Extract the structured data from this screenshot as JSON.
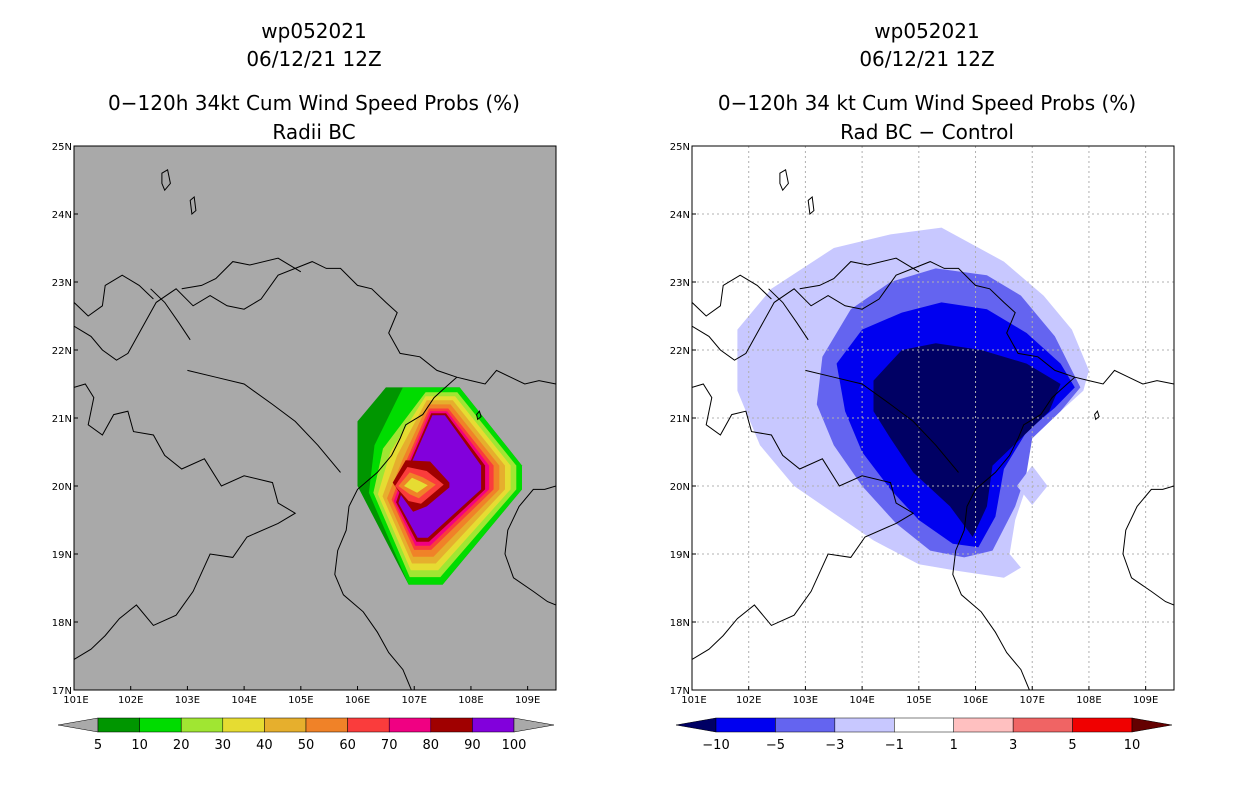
{
  "chart_data": [
    {
      "type": "contour-map",
      "title_lines": [
        "wp052021",
        "06/12/21 12Z",
        "0−120h 34kt Cum Wind Speed Probs (%)",
        "Radii BC"
      ],
      "xlabel": "",
      "ylabel": "",
      "xlim": [
        101,
        109.5
      ],
      "ylim": [
        17,
        25
      ],
      "x_tick_labels": [
        "101E",
        "102E",
        "103E",
        "104E",
        "105E",
        "106E",
        "107E",
        "108E",
        "109E"
      ],
      "y_tick_labels": [
        "17N",
        "18N",
        "19N",
        "20N",
        "21N",
        "22N",
        "23N",
        "24N",
        "25N"
      ],
      "grid": false,
      "background_color": "#a9a9a9",
      "storm_center": [
        107.0,
        20.0
      ],
      "levels": [
        {
          "min": 5,
          "color": "#009600",
          "polygon": [
            [
              106.5,
              21.45
            ],
            [
              107.8,
              21.45
            ],
            [
              108.9,
              20.3
            ],
            [
              108.9,
              19.95
            ],
            [
              107.5,
              18.55
            ],
            [
              106.9,
              18.55
            ],
            [
              106.0,
              20.0
            ],
            [
              106.0,
              20.95
            ]
          ]
        },
        {
          "min": 10,
          "color": "#00dc00",
          "polygon": [
            [
              106.8,
              21.45
            ],
            [
              107.8,
              21.45
            ],
            [
              108.9,
              20.3
            ],
            [
              108.9,
              19.95
            ],
            [
              107.5,
              18.55
            ],
            [
              106.9,
              18.55
            ],
            [
              106.2,
              19.9
            ],
            [
              106.3,
              20.6
            ]
          ]
        },
        {
          "min": 20,
          "color": "#a0e632",
          "polygon": [
            [
              107.2,
              21.38
            ],
            [
              107.76,
              21.38
            ],
            [
              108.8,
              20.3
            ],
            [
              108.8,
              19.95
            ],
            [
              107.46,
              18.66
            ],
            [
              106.92,
              18.66
            ],
            [
              106.28,
              19.9
            ],
            [
              106.45,
              20.55
            ]
          ]
        },
        {
          "min": 30,
          "color": "#e6dc32",
          "polygon": [
            [
              107.2,
              21.32
            ],
            [
              107.72,
              21.32
            ],
            [
              108.7,
              20.3
            ],
            [
              108.7,
              19.95
            ],
            [
              107.42,
              18.76
            ],
            [
              106.94,
              18.76
            ],
            [
              106.36,
              19.88
            ],
            [
              106.58,
              20.5
            ]
          ]
        },
        {
          "min": 40,
          "color": "#e6af2d",
          "polygon": [
            [
              107.22,
              21.26
            ],
            [
              107.68,
              21.26
            ],
            [
              108.6,
              20.3
            ],
            [
              108.6,
              19.95
            ],
            [
              107.38,
              18.86
            ],
            [
              106.96,
              18.86
            ],
            [
              106.44,
              19.85
            ],
            [
              106.7,
              20.45
            ]
          ]
        },
        {
          "min": 50,
          "color": "#f08228",
          "polygon": [
            [
              107.24,
              21.2
            ],
            [
              107.64,
              21.2
            ],
            [
              108.5,
              20.3
            ],
            [
              108.5,
              19.95
            ],
            [
              107.34,
              18.96
            ],
            [
              106.98,
              18.96
            ],
            [
              106.52,
              19.82
            ],
            [
              106.8,
              20.4
            ]
          ]
        },
        {
          "min": 60,
          "color": "#fa3c3c",
          "polygon": [
            [
              107.26,
              21.14
            ],
            [
              107.6,
              21.14
            ],
            [
              108.4,
              20.3
            ],
            [
              108.4,
              19.95
            ],
            [
              107.3,
              19.06
            ],
            [
              107.0,
              19.06
            ],
            [
              106.6,
              19.8
            ],
            [
              106.85,
              20.35
            ]
          ]
        },
        {
          "min": 70,
          "color": "#f00082",
          "polygon": [
            [
              107.28,
              21.1
            ],
            [
              107.58,
              21.1
            ],
            [
              108.32,
              20.3
            ],
            [
              108.32,
              19.95
            ],
            [
              107.28,
              19.12
            ],
            [
              107.02,
              19.12
            ],
            [
              106.64,
              19.78
            ],
            [
              106.88,
              20.32
            ]
          ]
        },
        {
          "min": 80,
          "color": "#a00000",
          "polygon": [
            [
              107.3,
              21.07
            ],
            [
              107.56,
              21.07
            ],
            [
              108.25,
              20.3
            ],
            [
              108.25,
              19.95
            ],
            [
              107.26,
              19.18
            ],
            [
              107.04,
              19.18
            ],
            [
              106.68,
              19.76
            ],
            [
              106.9,
              20.3
            ]
          ]
        },
        {
          "min": 90,
          "color": "#8200dc",
          "polygon": [
            [
              107.32,
              21.04
            ],
            [
              107.54,
              21.04
            ],
            [
              108.18,
              20.3
            ],
            [
              108.18,
              19.95
            ],
            [
              107.24,
              19.24
            ],
            [
              107.06,
              19.24
            ],
            [
              106.72,
              19.75
            ],
            [
              106.92,
              20.28
            ]
          ]
        },
        {
          "min": 80,
          "color": "#a00000",
          "polygon": [
            [
              106.85,
              20.38
            ],
            [
              107.28,
              20.36
            ],
            [
              107.62,
              20.05
            ],
            [
              107.62,
              19.98
            ],
            [
              107.22,
              19.7
            ],
            [
              106.98,
              19.62
            ],
            [
              106.78,
              19.85
            ],
            [
              106.62,
              20.05
            ]
          ]
        },
        {
          "min": 70,
          "color": "#fa3c3c",
          "polygon": [
            [
              106.88,
              20.28
            ],
            [
              107.22,
              20.22
            ],
            [
              107.52,
              20.02
            ],
            [
              107.12,
              19.74
            ],
            [
              106.9,
              19.78
            ],
            [
              106.66,
              20.0
            ]
          ]
        },
        {
          "min": 50,
          "color": "#f08228",
          "polygon": [
            [
              106.92,
              20.2
            ],
            [
              107.15,
              20.13
            ],
            [
              107.38,
              20.02
            ],
            [
              107.08,
              19.82
            ],
            [
              106.92,
              19.88
            ],
            [
              106.72,
              20.0
            ]
          ]
        },
        {
          "min": 30,
          "color": "#e6dc32",
          "polygon": [
            [
              106.96,
              20.12
            ],
            [
              107.1,
              20.07
            ],
            [
              107.24,
              20.01
            ],
            [
              107.05,
              19.9
            ],
            [
              106.96,
              19.94
            ],
            [
              106.82,
              20.0
            ]
          ]
        }
      ],
      "colorbar": {
        "type": "triangle-ends",
        "tick_labels": [
          "5",
          "10",
          "20",
          "30",
          "40",
          "50",
          "60",
          "70",
          "80",
          "90",
          "100"
        ],
        "colors": [
          "#009600",
          "#00dc00",
          "#a0e632",
          "#e6dc32",
          "#e6af2d",
          "#f08228",
          "#fa3c3c",
          "#f00082",
          "#a00000",
          "#8200dc"
        ],
        "end_color": "#a9a9a9"
      }
    },
    {
      "type": "contour-map",
      "title_lines": [
        "wp052021",
        "06/12/21 12Z",
        "0−120h 34 kt Cum Wind Speed Probs (%)",
        "Rad BC − Control"
      ],
      "xlabel": "",
      "ylabel": "",
      "xlim": [
        101,
        109.5
      ],
      "ylim": [
        17,
        25
      ],
      "x_tick_labels": [
        "101E",
        "102E",
        "103E",
        "104E",
        "105E",
        "106E",
        "107E",
        "108E",
        "109E"
      ],
      "y_tick_labels": [
        "17N",
        "18N",
        "19N",
        "20N",
        "21N",
        "22N",
        "23N",
        "24N",
        "25N"
      ],
      "grid": true,
      "background_color": "#ffffff",
      "levels": [
        {
          "max": -1,
          "color": "#c8c8ff",
          "polygon": [
            [
              101.8,
              22.3
            ],
            [
              102.4,
              22.9
            ],
            [
              103.5,
              23.5
            ],
            [
              104.5,
              23.7
            ],
            [
              105.4,
              23.8
            ],
            [
              106.5,
              23.3
            ],
            [
              107.2,
              22.8
            ],
            [
              107.7,
              22.3
            ],
            [
              108.0,
              21.7
            ],
            [
              107.9,
              21.4
            ],
            [
              107.5,
              21.1
            ],
            [
              107.2,
              21.0
            ],
            [
              106.9,
              20.6
            ],
            [
              106.9,
              20.0
            ],
            [
              106.7,
              19.5
            ],
            [
              106.6,
              19.0
            ],
            [
              106.8,
              18.8
            ],
            [
              106.5,
              18.65
            ],
            [
              105.7,
              18.75
            ],
            [
              105.0,
              18.85
            ],
            [
              104.2,
              19.2
            ],
            [
              103.5,
              19.6
            ],
            [
              102.8,
              20.0
            ],
            [
              102.2,
              20.6
            ],
            [
              101.8,
              21.4
            ]
          ]
        },
        {
          "max": -3,
          "color": "#6464f0",
          "polygon": [
            [
              103.3,
              21.9
            ],
            [
              103.8,
              22.6
            ],
            [
              104.5,
              23.0
            ],
            [
              105.3,
              23.2
            ],
            [
              106.2,
              23.1
            ],
            [
              106.8,
              22.8
            ],
            [
              107.4,
              22.2
            ],
            [
              107.85,
              21.45
            ],
            [
              107.5,
              21.1
            ],
            [
              107.0,
              20.7
            ],
            [
              106.9,
              20.2
            ],
            [
              106.7,
              19.7
            ],
            [
              106.3,
              19.05
            ],
            [
              105.8,
              18.95
            ],
            [
              105.2,
              19.05
            ],
            [
              104.6,
              19.45
            ],
            [
              104.0,
              20.0
            ],
            [
              103.5,
              20.6
            ],
            [
              103.2,
              21.2
            ]
          ]
        },
        {
          "max": -5,
          "color": "#0000f0",
          "polygon": [
            [
              103.55,
              21.8
            ],
            [
              104.0,
              22.3
            ],
            [
              104.7,
              22.55
            ],
            [
              105.4,
              22.7
            ],
            [
              106.2,
              22.6
            ],
            [
              106.9,
              22.25
            ],
            [
              107.5,
              21.8
            ],
            [
              107.75,
              21.45
            ],
            [
              107.4,
              21.15
            ],
            [
              106.9,
              20.8
            ],
            [
              106.5,
              20.25
            ],
            [
              106.35,
              19.55
            ],
            [
              106.05,
              19.1
            ],
            [
              105.6,
              19.15
            ],
            [
              105.0,
              19.5
            ],
            [
              104.5,
              19.95
            ],
            [
              104.0,
              20.5
            ],
            [
              103.7,
              21.1
            ]
          ]
        },
        {
          "max": -10,
          "color": "#000064",
          "polygon": [
            [
              104.2,
              21.55
            ],
            [
              104.7,
              22.0
            ],
            [
              105.3,
              22.1
            ],
            [
              106.1,
              22.0
            ],
            [
              106.9,
              21.8
            ],
            [
              107.5,
              21.5
            ],
            [
              107.3,
              21.1
            ],
            [
              106.8,
              20.7
            ],
            [
              106.3,
              20.3
            ],
            [
              106.2,
              19.7
            ],
            [
              105.95,
              19.25
            ],
            [
              105.55,
              19.7
            ],
            [
              104.9,
              20.2
            ],
            [
              104.5,
              20.7
            ],
            [
              104.2,
              21.1
            ]
          ]
        },
        {
          "max": -1,
          "color": "#c8c8ff",
          "polygon": [
            [
              107.0,
              20.3
            ],
            [
              107.27,
              20.0
            ],
            [
              107.0,
              19.72
            ],
            [
              106.73,
              20.0
            ]
          ]
        }
      ],
      "colorbar": {
        "type": "triangle-ends",
        "tick_labels": [
          "−10",
          "−5",
          "−3",
          "−1",
          "1",
          "3",
          "5",
          "10"
        ],
        "colors": [
          "#0000f0",
          "#6464f0",
          "#c8c8ff",
          "#ffffff",
          "#ffc0c0",
          "#f06464",
          "#f00000"
        ],
        "low_end_color": "#000064",
        "high_end_color": "#640000"
      }
    }
  ]
}
